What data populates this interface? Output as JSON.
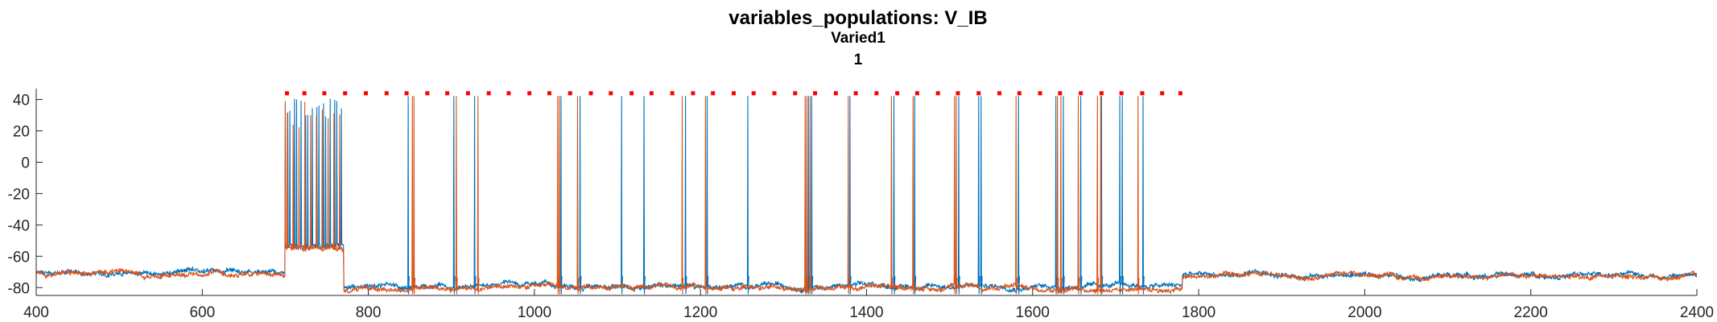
{
  "chart_data": {
    "type": "line",
    "title": "variables_populations: V_IB",
    "subtitle": [
      "Varied1",
      "1"
    ],
    "xlim": [
      400,
      2400
    ],
    "ylim": [
      -85,
      47
    ],
    "x_ticks": [
      400,
      600,
      800,
      1000,
      1200,
      1400,
      1600,
      1800,
      2000,
      2200,
      2400
    ],
    "y_ticks": [
      -80,
      -60,
      -40,
      -20,
      0,
      20,
      40
    ],
    "grid": false,
    "legend": "none",
    "colors": {
      "series_blue": "#0072BD",
      "series_orange": "#D95319",
      "markers": "#FF0000",
      "axis": "#262626"
    },
    "series": [
      {
        "color": "series_blue",
        "baseline_segments": [
          {
            "x": [
              400,
              700
            ],
            "y": -70
          },
          {
            "x": [
              700,
              770
            ],
            "y": -52
          },
          {
            "x": [
              770,
              1780
            ],
            "y": -79
          },
          {
            "x": [
              1780,
              2400
            ],
            "y": -72
          }
        ],
        "burst": {
          "x": [
            700,
            770
          ],
          "low": -55,
          "high": 42,
          "count": 26
        },
        "spike_times": [
          848,
          903,
          928,
          1032,
          1055,
          1105,
          1132,
          1182,
          1208,
          1257,
          1330,
          1334,
          1380,
          1433,
          1458,
          1511,
          1535,
          1538,
          1583,
          1628,
          1637,
          1658,
          1683,
          1705,
          1708,
          1733
        ]
      },
      {
        "color": "series_orange",
        "baseline_segments": [
          {
            "x": [
              400,
              700
            ],
            "y": -71
          },
          {
            "x": [
              700,
              770
            ],
            "y": -54
          },
          {
            "x": [
              770,
              1780
            ],
            "y": -80
          },
          {
            "x": [
              1780,
              2400
            ],
            "y": -73
          }
        ],
        "burst": {
          "x": [
            700,
            770
          ],
          "low": -55,
          "high": 40,
          "count": 30
        },
        "spike_times": [
          853,
          855,
          906,
          932,
          1028,
          1030,
          1052,
          1178,
          1206,
          1326,
          1328,
          1332,
          1378,
          1430,
          1456,
          1506,
          1508,
          1580,
          1630,
          1634,
          1655,
          1678,
          1682,
          1727
        ]
      }
    ],
    "markers": {
      "y": 44,
      "x": [
        702,
        723,
        747,
        772,
        797,
        822,
        846,
        871,
        895,
        920,
        945,
        969,
        994,
        1018,
        1043,
        1068,
        1092,
        1117,
        1141,
        1166,
        1191,
        1215,
        1240,
        1264,
        1289,
        1314,
        1338,
        1363,
        1387,
        1412,
        1437,
        1461,
        1486,
        1510,
        1535,
        1560,
        1584,
        1609,
        1633,
        1658,
        1683,
        1707,
        1732,
        1756,
        1778
      ]
    }
  }
}
